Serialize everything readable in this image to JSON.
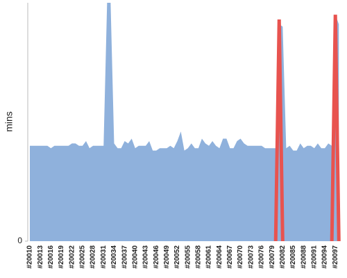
{
  "chart_data": {
    "type": "area",
    "y_label": "mins",
    "ylim": [
      0,
      100
    ],
    "yticks": [
      0
    ],
    "categories": [
      "#20010",
      null,
      null,
      "#20013",
      null,
      null,
      "#20016",
      null,
      null,
      "#20019",
      null,
      null,
      "#20022",
      null,
      null,
      "#20025",
      null,
      null,
      "#20028",
      null,
      null,
      "#20031",
      null,
      null,
      "#20034",
      null,
      null,
      "#20037",
      null,
      null,
      "#20040",
      null,
      null,
      "#20043",
      null,
      null,
      "#20046",
      null,
      null,
      "#20049",
      null,
      null,
      "#20052",
      null,
      null,
      "#20055",
      null,
      null,
      "#20058",
      null,
      null,
      "#20061",
      null,
      null,
      "#20064",
      null,
      null,
      "#20067",
      null,
      null,
      "#20070",
      null,
      null,
      "#20073",
      null,
      null,
      "#20076",
      null,
      null,
      "#20079",
      null,
      null,
      "#20082",
      null,
      null,
      "#20085",
      null,
      null,
      "#20088",
      null,
      null,
      "#20091",
      null,
      null,
      "#20094",
      null,
      null,
      "#20097",
      null
    ],
    "series": [
      {
        "color": "#8fb1dc",
        "values": [
          40,
          40,
          40,
          40,
          40,
          40,
          39,
          40,
          40,
          40,
          40,
          40,
          41,
          41,
          40,
          40,
          42,
          39,
          40,
          40,
          40,
          40,
          100,
          100,
          41,
          39,
          39,
          42,
          41,
          43,
          39,
          40,
          40,
          40,
          42,
          38,
          38,
          39,
          39,
          39,
          40,
          39,
          42,
          46,
          38,
          39,
          41,
          39,
          39,
          43,
          41,
          40,
          42,
          40,
          39,
          43,
          43,
          39,
          39,
          42,
          43,
          41,
          40,
          40,
          40,
          40,
          40,
          39,
          39,
          39,
          39,
          91,
          90,
          39,
          40,
          38,
          38,
          41,
          39,
          40,
          40,
          39,
          41,
          39,
          39,
          41,
          40,
          95,
          91
        ]
      },
      {
        "type": "line",
        "color": "#e8534f",
        "values": [
          null,
          null,
          null,
          null,
          null,
          null,
          null,
          null,
          null,
          null,
          null,
          null,
          null,
          null,
          null,
          null,
          null,
          null,
          null,
          null,
          null,
          null,
          null,
          null,
          null,
          null,
          null,
          null,
          null,
          null,
          null,
          null,
          null,
          null,
          null,
          null,
          null,
          null,
          null,
          null,
          null,
          null,
          null,
          null,
          null,
          null,
          null,
          null,
          null,
          null,
          null,
          null,
          null,
          null,
          null,
          null,
          null,
          null,
          null,
          null,
          null,
          null,
          null,
          null,
          null,
          null,
          null,
          null,
          null,
          null,
          0,
          93,
          0,
          null,
          null,
          null,
          null,
          null,
          null,
          null,
          null,
          null,
          null,
          null,
          null,
          null,
          0,
          95,
          0
        ]
      }
    ]
  }
}
